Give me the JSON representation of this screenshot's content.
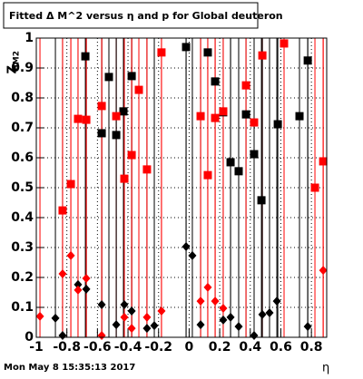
{
  "chart_data": {
    "type": "scatter",
    "title": "Fitted Δ M^2 versus η and p for Global deuteron",
    "x_label": "η",
    "y_label": "Z",
    "y_label_sub": "dM2",
    "timestamp": "Mon May  8 15:35:13 2017",
    "xlim": [
      -1,
      0.9
    ],
    "ylim": [
      0,
      1
    ],
    "xticks": [
      -1,
      -0.8,
      -0.6,
      -0.4,
      -0.2,
      0,
      0.2,
      0.4,
      0.6,
      0.8
    ],
    "yticks": [
      0,
      0.1,
      0.2,
      0.3,
      0.4,
      0.5,
      0.6,
      0.7,
      0.8,
      0.9,
      1
    ],
    "grid": true,
    "series": [
      {
        "color": "#000000",
        "marker": "square",
        "x": [
          -0.679,
          -0.572,
          -0.525,
          -0.477,
          -0.43,
          -0.376,
          -0.02,
          0.122,
          0.17,
          0.223,
          0.271,
          0.324,
          0.372,
          0.425,
          0.473,
          0.58,
          0.722,
          0.776
        ],
        "values": [
          0.939,
          0.682,
          0.87,
          0.676,
          0.755,
          0.873,
          0.97,
          0.952,
          0.855,
          0.752,
          0.585,
          0.555,
          0.745,
          0.612,
          0.458,
          0.712,
          0.739,
          0.925
        ]
      },
      {
        "color": "#ff0000",
        "marker": "square",
        "x": [
          -0.828,
          -0.774,
          -0.727,
          -0.673,
          -0.572,
          -0.477,
          -0.424,
          -0.376,
          -0.329,
          -0.276,
          -0.181,
          0.075,
          0.122,
          0.17,
          0.223,
          0.372,
          0.425,
          0.479,
          0.621,
          0.823,
          0.877
        ],
        "values": [
          0.424,
          0.512,
          0.73,
          0.727,
          0.773,
          0.739,
          0.53,
          0.609,
          0.827,
          0.561,
          0.952,
          0.739,
          0.542,
          0.733,
          0.755,
          0.842,
          0.718,
          0.942,
          0.982,
          0.5,
          0.588
        ]
      },
      {
        "color": "#000000",
        "marker": "diamond",
        "x": [
          -0.875,
          -0.828,
          -0.727,
          -0.673,
          -0.572,
          -0.477,
          -0.424,
          -0.376,
          -0.276,
          -0.228,
          -0.02,
          0.021,
          0.075,
          0.223,
          0.271,
          0.324,
          0.425,
          0.479,
          0.526,
          0.574,
          0.776
        ],
        "values": [
          0.064,
          0.006,
          0.176,
          0.161,
          0.109,
          0.042,
          0.109,
          0.088,
          0.03,
          0.039,
          0.303,
          0.273,
          0.042,
          0.058,
          0.067,
          0.036,
          0.006,
          0.076,
          0.082,
          0.121,
          0.036
        ]
      },
      {
        "color": "#ff0000",
        "marker": "diamond",
        "x": [
          -0.976,
          -0.828,
          -0.774,
          -0.727,
          -0.673,
          -0.572,
          -0.424,
          -0.376,
          -0.276,
          -0.181,
          0.075,
          0.122,
          0.17,
          0.223,
          0.877
        ],
        "values": [
          0.07,
          0.212,
          0.273,
          0.158,
          0.197,
          0.006,
          0.067,
          0.03,
          0.067,
          0.088,
          0.121,
          0.167,
          0.121,
          0.097,
          0.224
        ]
      }
    ]
  }
}
